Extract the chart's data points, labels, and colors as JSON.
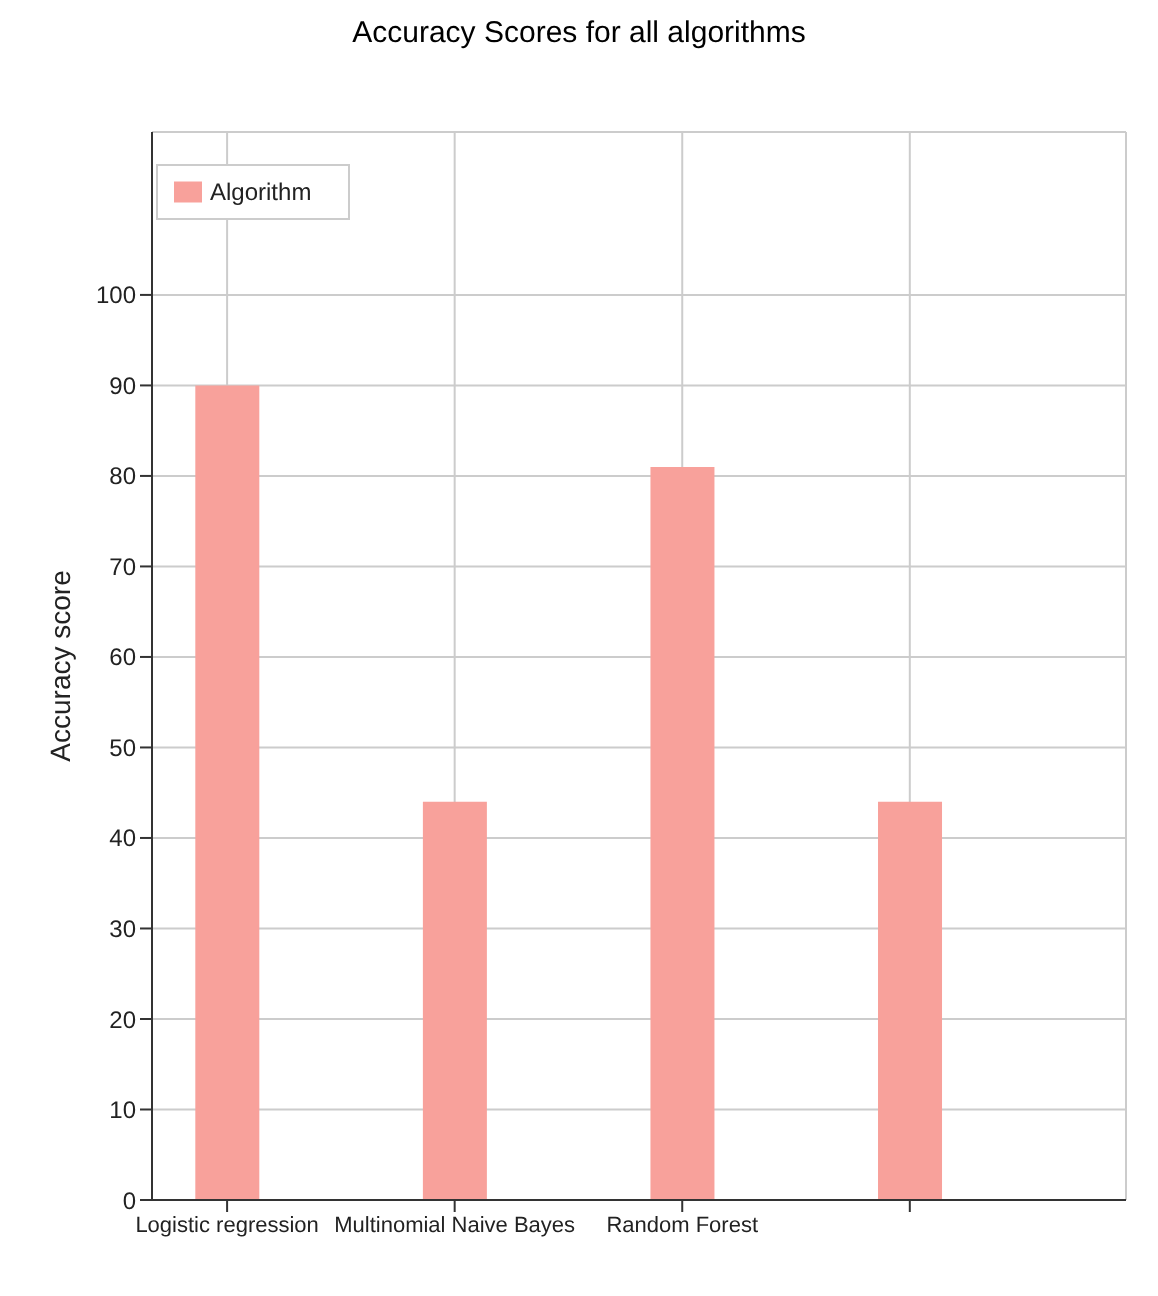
{
  "chart_data": {
    "type": "bar",
    "title": "Accuracy Scores for all algorithms",
    "ylabel": "Accuracy score",
    "categories": [
      "Logistic regression",
      "Multinomial Naive Bayes",
      "Random Forest",
      null
    ],
    "series": [
      {
        "name": "Algorithm",
        "color": "#f8a19b",
        "values": [
          90,
          44,
          81,
          44
        ]
      }
    ],
    "ylim": [
      0,
      118
    ],
    "yticks": [
      0,
      10,
      20,
      30,
      40,
      50,
      60,
      70,
      80,
      90,
      100
    ],
    "grid": true,
    "legend": "top left"
  }
}
